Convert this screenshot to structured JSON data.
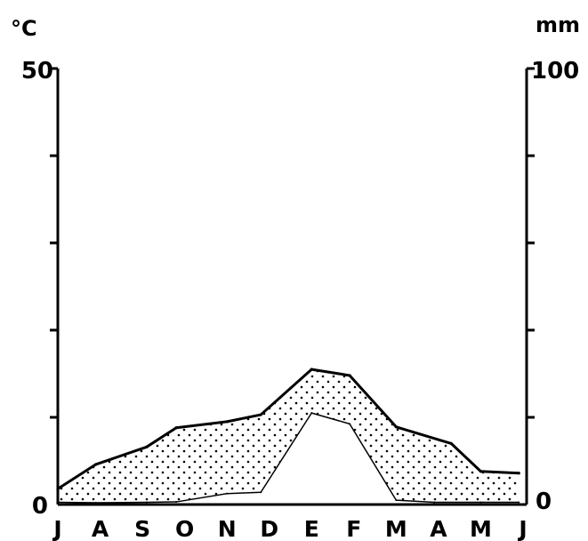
{
  "chart_data": {
    "type": "area",
    "title": "",
    "categories": [
      "J",
      "A",
      "S",
      "O",
      "N",
      "D",
      "E",
      "F",
      "M",
      "A",
      "M",
      "J"
    ],
    "axes": {
      "left_unit": "°C",
      "right_unit": "mm",
      "left_ylim": [
        0,
        50
      ],
      "right_ylim": [
        0,
        100
      ],
      "left_ticks": [
        0,
        50
      ],
      "right_ticks": [
        0,
        100
      ],
      "ticks_every_left": 10,
      "ticks_every_right": 20
    },
    "series": [
      {
        "name": "",
        "axis": "left",
        "style": "thick",
        "x": [
          0,
          0.9,
          2.1,
          2.8,
          4.0,
          4.8,
          6.0,
          6.9,
          8.0,
          9.3,
          10.0,
          10.9
        ],
        "values": [
          1.8,
          4.6,
          6.6,
          8.8,
          9.5,
          10.3,
          15.5,
          14.8,
          8.9,
          7.0,
          3.8,
          3.6
        ]
      },
      {
        "name": "",
        "axis": "right",
        "style": "thin",
        "x": [
          0,
          0.9,
          2.1,
          2.8,
          4.0,
          4.8,
          6.0,
          6.9,
          8.0,
          8.9,
          10.0,
          10.9
        ],
        "values": [
          0.5,
          0.4,
          0.5,
          0.6,
          2.5,
          2.8,
          21.0,
          18.5,
          1.0,
          0.5,
          0.5,
          0.5
        ]
      }
    ],
    "fills": {
      "arid": "dotted",
      "humid": "vertical-hatch"
    },
    "grid": false,
    "legend": "none"
  }
}
